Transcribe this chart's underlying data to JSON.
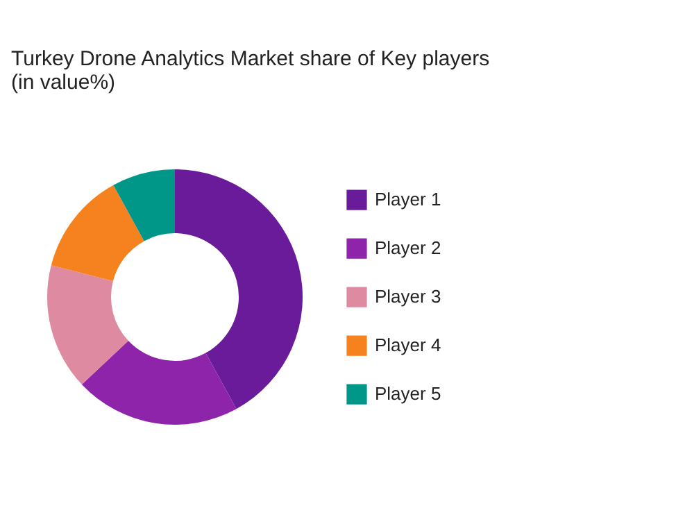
{
  "chart_data": {
    "type": "donut",
    "title": "Turkey Drone Analytics Market share of Key players\n(in value%)",
    "categories": [
      "Player 1",
      "Player 2",
      "Player 3",
      "Player 4",
      "Player 5"
    ],
    "values": [
      42,
      21,
      16,
      13,
      8
    ],
    "colors": [
      "#6a1b9a",
      "#8e24aa",
      "#de8aa0",
      "#f5821f",
      "#009688"
    ],
    "legend": "right"
  }
}
